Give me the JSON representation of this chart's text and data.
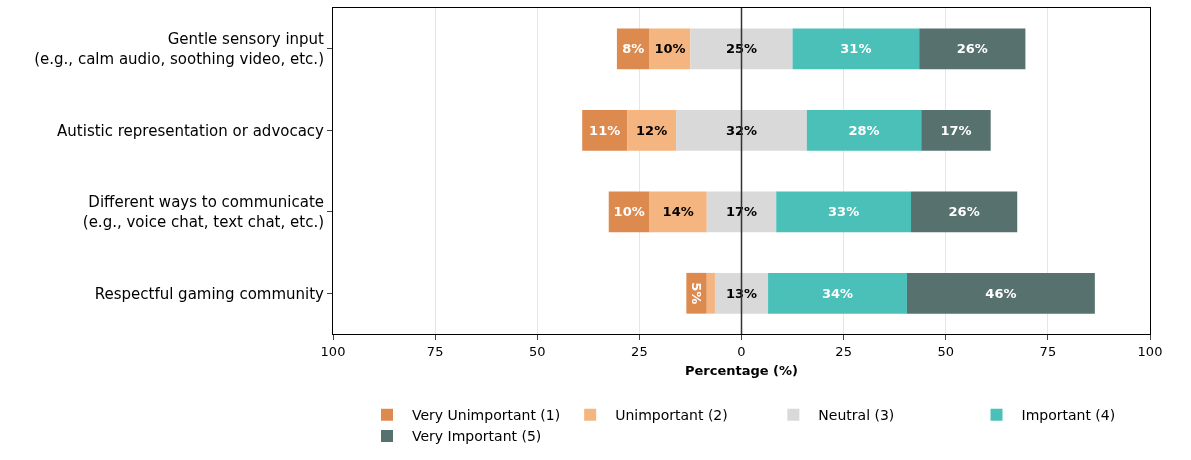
{
  "chart_data": {
    "type": "bar",
    "orientation": "horizontal",
    "stacked": true,
    "xlabel": "Percentage (%)",
    "categories": [
      "Gentle sensory input\n(e.g., calm audio, soothing video, etc.)",
      "Autistic representation or advocacy",
      "Different ways to communicate\n(e.g., voice chat, text chat, etc.)",
      "Respectful gaming community"
    ],
    "series": [
      {
        "name": "Very Unimportant (1)",
        "color": "#dd8a4f",
        "values": [
          8,
          11,
          10,
          5
        ],
        "base": [
          -30.5,
          -39,
          -32.5,
          -13.5
        ],
        "value_labels": [
          "8%",
          "11%",
          "10%",
          "5%"
        ]
      },
      {
        "name": "Unimportant (2)",
        "color": "#f4b580",
        "values": [
          10,
          12,
          14,
          2
        ],
        "base": [
          -22.5,
          -28,
          -22.5,
          -8.5
        ],
        "value_labels": [
          "10%",
          "12%",
          "14%",
          null
        ]
      },
      {
        "name": "Neutral (3)",
        "color": "#d9d9d9",
        "values": [
          25,
          32,
          17,
          13
        ],
        "base": [
          -12.5,
          -16,
          -8.5,
          -6.5
        ],
        "value_labels": [
          "25%",
          "32%",
          "17%",
          "13%"
        ]
      },
      {
        "name": "Important (4)",
        "color": "#4bc0b9",
        "values": [
          31,
          28,
          33,
          34
        ],
        "base": [
          12.5,
          16,
          8.5,
          6.5
        ],
        "value_labels": [
          "31%",
          "28%",
          "33%",
          "34%"
        ]
      },
      {
        "name": "Very Important (5)",
        "color": "#56716e",
        "values": [
          26,
          17,
          26,
          46
        ],
        "base": [
          43.5,
          44,
          41.5,
          40.5
        ],
        "value_labels": [
          "26%",
          "17%",
          "26%",
          "46%"
        ]
      }
    ],
    "xlim": [
      -100,
      100
    ],
    "xticks": [
      {
        "value": -100,
        "label": "100"
      },
      {
        "value": -75,
        "label": "75"
      },
      {
        "value": -50,
        "label": "50"
      },
      {
        "value": -25,
        "label": "25"
      },
      0,
      25,
      50,
      75,
      100
    ],
    "ref_lines": [
      {
        "axis": "x",
        "value": 0,
        "color": "#333333"
      }
    ],
    "grid": "x",
    "legend": "bottom"
  }
}
